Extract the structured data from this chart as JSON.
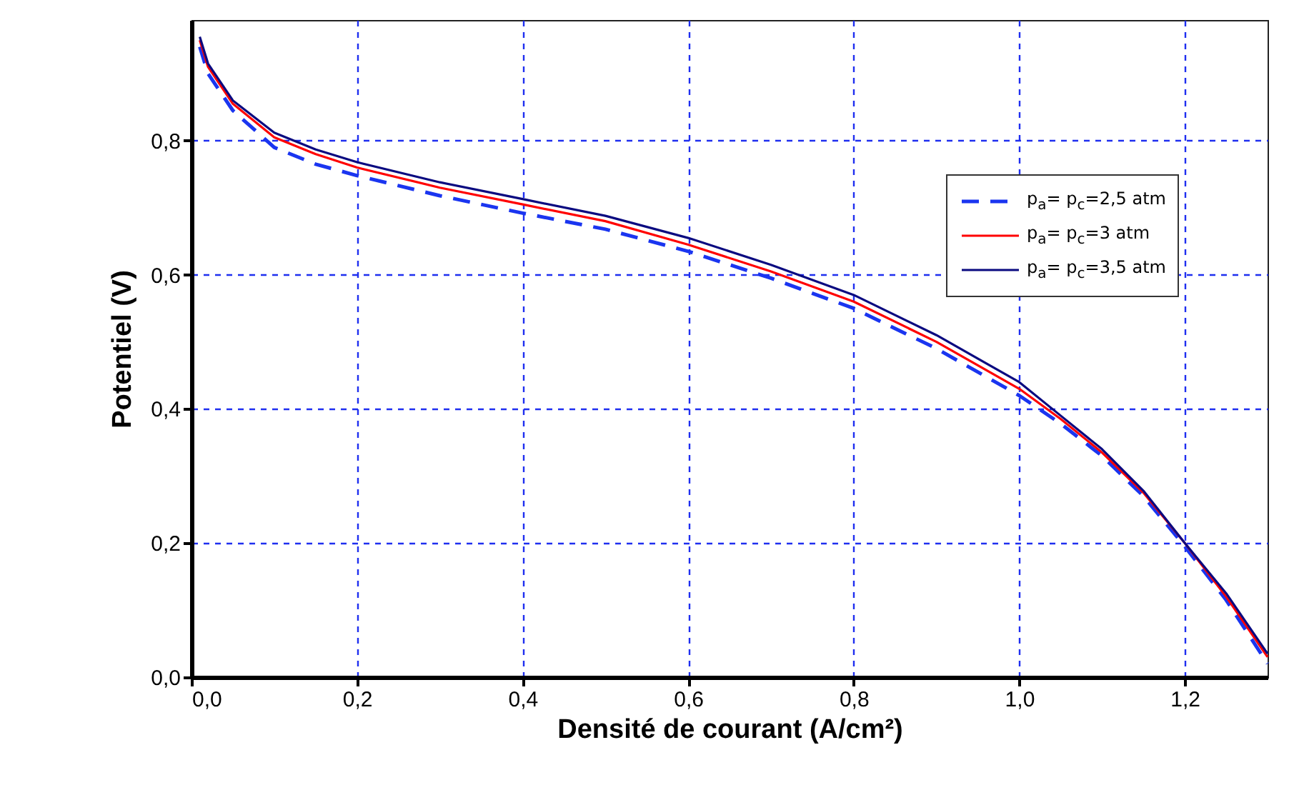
{
  "chart_data": {
    "type": "line",
    "xlabel": "Densité de courant (A/cm²)",
    "ylabel": "Potentiel (V)",
    "xlim": [
      0,
      1.3
    ],
    "ylim": [
      0,
      0.98
    ],
    "xticks": [
      {
        "value": 0,
        "label": "0,0"
      },
      {
        "value": 0.2,
        "label": "0,2"
      },
      {
        "value": 0.4,
        "label": "0,4"
      },
      {
        "value": 0.6,
        "label": "0,6"
      },
      {
        "value": 0.8,
        "label": "0,8"
      },
      {
        "value": 1.0,
        "label": "1,0"
      },
      {
        "value": 1.2,
        "label": "1,2"
      }
    ],
    "yticks": [
      {
        "value": 0,
        "label": "0,0"
      },
      {
        "value": 0.2,
        "label": "0,2"
      },
      {
        "value": 0.4,
        "label": "0,4"
      },
      {
        "value": 0.6,
        "label": "0,6"
      },
      {
        "value": 0.8,
        "label": "0,8"
      }
    ],
    "x": [
      0.01,
      0.02,
      0.05,
      0.1,
      0.15,
      0.2,
      0.3,
      0.4,
      0.5,
      0.6,
      0.7,
      0.8,
      0.9,
      1.0,
      1.05,
      1.1,
      1.15,
      1.2,
      1.25,
      1.3
    ],
    "grid": true,
    "legend": "top right",
    "marker": "none",
    "series": [
      {
        "name": "p$_{a}$= p$_{c}$=2,5 atm",
        "color": "#1a35f0",
        "line_style": "dashed",
        "values": [
          0.94,
          0.9,
          0.845,
          0.79,
          0.765,
          0.748,
          0.718,
          0.692,
          0.668,
          0.635,
          0.595,
          0.55,
          0.49,
          0.42,
          0.378,
          0.33,
          0.27,
          0.195,
          0.115,
          0.02
        ]
      },
      {
        "name": "p$_{a}$= p$_{c}$=3 atm",
        "color": "#ff0000",
        "line_style": "solid",
        "values": [
          0.95,
          0.91,
          0.855,
          0.805,
          0.78,
          0.76,
          0.73,
          0.705,
          0.68,
          0.645,
          0.605,
          0.56,
          0.5,
          0.43,
          0.385,
          0.335,
          0.275,
          0.2,
          0.12,
          0.03
        ]
      },
      {
        "name": "p$_{a}$= p$_{c}$=3,5 atm",
        "color": "#0a0a80",
        "line_style": "solid",
        "values": [
          0.955,
          0.915,
          0.86,
          0.812,
          0.787,
          0.768,
          0.738,
          0.713,
          0.688,
          0.655,
          0.615,
          0.57,
          0.51,
          0.44,
          0.39,
          0.34,
          0.278,
          0.2,
          0.125,
          0.035
        ]
      }
    ]
  }
}
